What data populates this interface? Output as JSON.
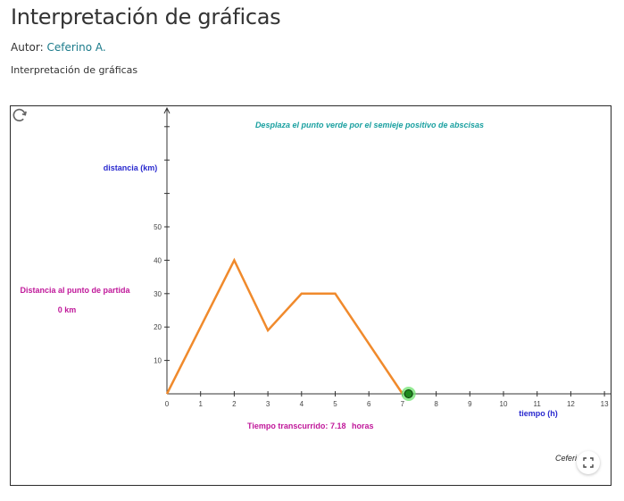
{
  "page": {
    "title": "Interpretación de gráficas",
    "author_label": "Autor:",
    "author_name": "Ceferino A.",
    "description": "Interpretación de gráficas"
  },
  "applet": {
    "instruction": "Desplaza el punto verde por el semieje positivo de abscisas",
    "y_axis_label": "distancia (km)",
    "x_axis_label": "tiempo (h)",
    "distance_label": "Distancia al punto  de partida",
    "distance_value": "0 km",
    "elapsed_label": "Tiempo transcurrido:",
    "elapsed_value": "7.18",
    "elapsed_unit": "horas",
    "credit": "Ceferi",
    "colors": {
      "graph": "#f08a2c",
      "point": "#1e8a1e",
      "point_halo": "#6fe36f",
      "instruction": "#1aa0a0",
      "axis_label": "#2a2acf",
      "magenta": "#c0189a"
    }
  },
  "chart_data": {
    "type": "line",
    "x": [
      0,
      2,
      3,
      4,
      5,
      7
    ],
    "y": [
      0,
      40,
      19,
      30,
      30,
      0
    ],
    "x_ticks": [
      "0",
      "1",
      "2",
      "3",
      "4",
      "5",
      "6",
      "7",
      "8",
      "9",
      "10",
      "11",
      "12",
      "13"
    ],
    "y_ticks": [
      "10",
      "20",
      "30",
      "40",
      "50"
    ],
    "xlim": [
      0,
      13
    ],
    "ylim": [
      0,
      50
    ],
    "point": {
      "x": 7.18,
      "y": 0
    },
    "xlabel": "tiempo (h)",
    "ylabel": "distancia (km)"
  }
}
